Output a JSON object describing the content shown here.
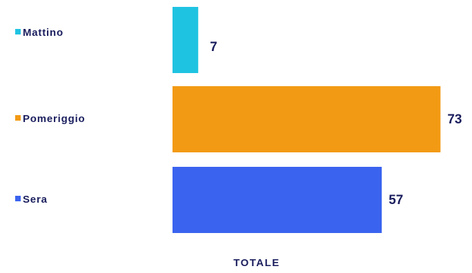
{
  "chart_data": {
    "type": "bar",
    "orientation": "horizontal",
    "categories": [
      "Mattino",
      "Pomeriggio",
      "Sera"
    ],
    "values": [
      7,
      73,
      57
    ],
    "colors": [
      "#1FC3E2",
      "#F39A14",
      "#3A63EF"
    ],
    "xlabel": "TOTALE",
    "label_color": "#1B1F5E",
    "grid": false,
    "legend": "left"
  }
}
